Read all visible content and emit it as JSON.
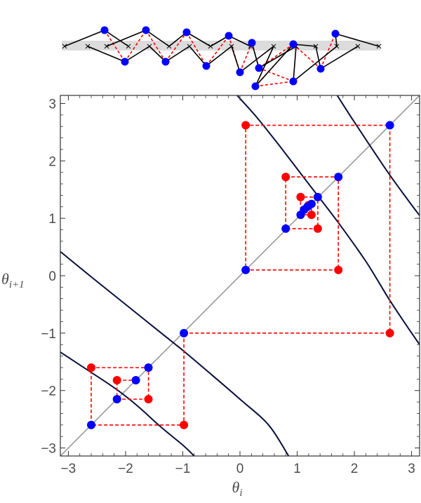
{
  "colors": {
    "blue": "#0000ff",
    "red": "#ff0000",
    "curve": "#0a0f3d",
    "diagonal": "#999999",
    "frame": "#333333",
    "band": "#dcdcdc",
    "text": "#4d4d4d"
  },
  "chart_data": {
    "type": "scatter",
    "title": "",
    "xlabel": {
      "main": "θ",
      "sub": "i"
    },
    "ylabel": {
      "main": "θ",
      "sub": "i+1"
    },
    "xlim": [
      -3.14,
      3.14
    ],
    "ylim": [
      -3.14,
      3.14
    ],
    "xticks": [
      "−3",
      "−2",
      "−1",
      "0",
      "1",
      "2",
      "3"
    ],
    "yticks": [
      "−3",
      "−2",
      "−1",
      "0",
      "1",
      "2",
      "3"
    ],
    "xtick_values": [
      -3,
      -2,
      -1,
      0,
      1,
      2,
      3
    ],
    "ytick_values": [
      -3,
      -2,
      -1,
      0,
      1,
      2,
      3
    ],
    "diagonal_line": {
      "from": [
        -3.14,
        -3.14
      ],
      "to": [
        3.14,
        3.14
      ]
    },
    "curves": [
      {
        "name": "",
        "points": [
          [
            -3.14,
            0.42
          ],
          [
            -2.6,
            -0.02
          ],
          [
            -2.0,
            -0.5
          ],
          [
            -1.5,
            -0.9
          ],
          [
            -1.0,
            -1.3
          ],
          [
            -0.5,
            -1.72
          ],
          [
            0.0,
            -2.15
          ],
          [
            0.5,
            -2.6
          ],
          [
            0.85,
            -3.14
          ]
        ]
      },
      {
        "name": "",
        "points": [
          [
            -3.14,
            -1.33
          ],
          [
            -2.7,
            -1.62
          ],
          [
            -2.2,
            -1.95
          ],
          [
            -1.8,
            -2.26
          ],
          [
            -1.4,
            -2.62
          ],
          [
            -1.0,
            -2.95
          ],
          [
            -0.8,
            -3.14
          ]
        ]
      },
      {
        "name": "",
        "points": [
          [
            -0.05,
            3.14
          ],
          [
            0.3,
            2.75
          ],
          [
            0.7,
            2.25
          ],
          [
            1.2,
            1.6
          ],
          [
            1.7,
            0.95
          ],
          [
            2.2,
            0.25
          ],
          [
            2.6,
            -0.4
          ],
          [
            2.9,
            -0.85
          ],
          [
            3.14,
            -1.2
          ]
        ]
      },
      {
        "name": "",
        "points": [
          [
            1.7,
            3.14
          ],
          [
            1.95,
            2.75
          ],
          [
            2.25,
            2.3
          ],
          [
            2.6,
            1.78
          ],
          [
            2.95,
            1.3
          ],
          [
            3.14,
            1.05
          ]
        ]
      }
    ],
    "cobweb_paths": [
      {
        "name": "",
        "points": [
          [
            -0.98,
            -1.0
          ],
          [
            -0.98,
            -2.6
          ],
          [
            -2.6,
            -2.6
          ],
          [
            -2.6,
            -1.6
          ],
          [
            -1.6,
            -1.6
          ],
          [
            -1.6,
            -2.15
          ],
          [
            -2.15,
            -2.15
          ],
          [
            -2.15,
            -1.82
          ],
          [
            -1.82,
            -1.82
          ]
        ]
      },
      {
        "name": "",
        "points": [
          [
            -0.98,
            -1.0
          ],
          [
            2.62,
            -1.0
          ],
          [
            2.62,
            2.62
          ],
          [
            0.1,
            2.62
          ],
          [
            0.1,
            0.1
          ],
          [
            1.72,
            0.1
          ],
          [
            1.72,
            1.72
          ],
          [
            0.8,
            1.72
          ],
          [
            0.8,
            0.82
          ],
          [
            1.36,
            0.82
          ],
          [
            1.36,
            1.37
          ],
          [
            1.06,
            1.37
          ],
          [
            1.06,
            1.06
          ],
          [
            1.25,
            1.06
          ],
          [
            1.25,
            1.25
          ]
        ]
      }
    ],
    "blue_points": [
      [
        -0.98,
        -1.0
      ],
      [
        -2.6,
        -2.6
      ],
      [
        -1.6,
        -1.6
      ],
      [
        -2.15,
        -2.15
      ],
      [
        -1.82,
        -1.82
      ],
      [
        2.62,
        2.62
      ],
      [
        0.1,
        0.1
      ],
      [
        1.72,
        1.72
      ],
      [
        0.8,
        0.82
      ],
      [
        1.36,
        1.37
      ],
      [
        1.06,
        1.06
      ],
      [
        1.12,
        1.15
      ],
      [
        1.18,
        1.2
      ],
      [
        1.25,
        1.25
      ]
    ],
    "red_points": [
      [
        -0.98,
        -2.6
      ],
      [
        -2.6,
        -1.6
      ],
      [
        -1.6,
        -2.15
      ],
      [
        -2.15,
        -1.82
      ],
      [
        2.62,
        -1.0
      ],
      [
        0.1,
        2.62
      ],
      [
        1.72,
        0.1
      ],
      [
        0.8,
        1.72
      ],
      [
        1.36,
        0.82
      ],
      [
        1.06,
        1.37
      ],
      [
        1.25,
        1.06
      ],
      [
        1.2,
        1.23
      ]
    ],
    "grid": false,
    "legend": "none"
  },
  "chain": {
    "band": true,
    "anchors": [
      [
        92,
        66
      ],
      [
        125,
        66
      ],
      [
        152,
        66
      ],
      [
        183,
        66
      ],
      [
        213,
        66
      ],
      [
        241,
        66
      ],
      [
        270,
        66
      ],
      [
        300,
        66
      ],
      [
        330,
        66
      ],
      [
        357,
        66
      ],
      [
        390,
        66
      ],
      [
        422,
        66
      ],
      [
        450,
        66
      ],
      [
        480,
        66
      ],
      [
        510,
        66
      ],
      [
        540,
        66
      ]
    ],
    "blue_nodes": [
      [
        149,
        43
      ],
      [
        178,
        88
      ],
      [
        208,
        43
      ],
      [
        236,
        88
      ],
      [
        266,
        46
      ],
      [
        294,
        94
      ],
      [
        326,
        51
      ],
      [
        342,
        103
      ],
      [
        359,
        61
      ],
      [
        369,
        97
      ],
      [
        364,
        123
      ],
      [
        418,
        63
      ],
      [
        418,
        116
      ],
      [
        457,
        98
      ],
      [
        478,
        48
      ]
    ],
    "black_links": [
      [
        [
          92,
          66
        ],
        [
          149,
          43
        ]
      ],
      [
        [
          149,
          43
        ],
        [
          183,
          66
        ]
      ],
      [
        [
          125,
          66
        ],
        [
          178,
          88
        ]
      ],
      [
        [
          178,
          88
        ],
        [
          213,
          66
        ]
      ],
      [
        [
          152,
          66
        ],
        [
          208,
          43
        ]
      ],
      [
        [
          208,
          43
        ],
        [
          241,
          66
        ]
      ],
      [
        [
          213,
          66
        ],
        [
          236,
          88
        ]
      ],
      [
        [
          236,
          88
        ],
        [
          270,
          66
        ]
      ],
      [
        [
          241,
          66
        ],
        [
          266,
          46
        ]
      ],
      [
        [
          266,
          46
        ],
        [
          300,
          66
        ]
      ],
      [
        [
          270,
          66
        ],
        [
          294,
          94
        ]
      ],
      [
        [
          294,
          94
        ],
        [
          330,
          66
        ]
      ],
      [
        [
          300,
          66
        ],
        [
          326,
          51
        ]
      ],
      [
        [
          326,
          51
        ],
        [
          357,
          66
        ]
      ],
      [
        [
          330,
          66
        ],
        [
          342,
          103
        ]
      ],
      [
        [
          342,
          103
        ],
        [
          390,
          66
        ]
      ],
      [
        [
          357,
          66
        ],
        [
          359,
          61
        ]
      ],
      [
        [
          359,
          61
        ],
        [
          369,
          97
        ]
      ],
      [
        [
          369,
          97
        ],
        [
          422,
          66
        ]
      ],
      [
        [
          390,
          66
        ],
        [
          364,
          123
        ]
      ],
      [
        [
          364,
          123
        ],
        [
          418,
          63
        ]
      ],
      [
        [
          418,
          63
        ],
        [
          450,
          66
        ]
      ],
      [
        [
          422,
          66
        ],
        [
          418,
          116
        ]
      ],
      [
        [
          418,
          116
        ],
        [
          480,
          66
        ]
      ],
      [
        [
          450,
          66
        ],
        [
          457,
          98
        ]
      ],
      [
        [
          457,
          98
        ],
        [
          510,
          66
        ]
      ],
      [
        [
          480,
          66
        ],
        [
          478,
          48
        ]
      ],
      [
        [
          478,
          48
        ],
        [
          540,
          66
        ]
      ]
    ],
    "red_links": [
      [
        [
          149,
          43
        ],
        [
          178,
          88
        ]
      ],
      [
        [
          178,
          88
        ],
        [
          208,
          43
        ]
      ],
      [
        [
          208,
          43
        ],
        [
          236,
          88
        ]
      ],
      [
        [
          236,
          88
        ],
        [
          266,
          46
        ]
      ],
      [
        [
          266,
          46
        ],
        [
          294,
          94
        ]
      ],
      [
        [
          294,
          94
        ],
        [
          326,
          51
        ]
      ],
      [
        [
          326,
          51
        ],
        [
          342,
          103
        ]
      ],
      [
        [
          342,
          103
        ],
        [
          359,
          61
        ]
      ],
      [
        [
          359,
          61
        ],
        [
          369,
          97
        ]
      ],
      [
        [
          369,
          97
        ],
        [
          418,
          63
        ]
      ],
      [
        [
          418,
          63
        ],
        [
          364,
          123
        ]
      ],
      [
        [
          364,
          123
        ],
        [
          418,
          116
        ]
      ],
      [
        [
          418,
          116
        ],
        [
          369,
          97
        ]
      ],
      [
        [
          418,
          63
        ],
        [
          457,
          98
        ]
      ],
      [
        [
          457,
          98
        ],
        [
          478,
          48
        ]
      ]
    ]
  }
}
